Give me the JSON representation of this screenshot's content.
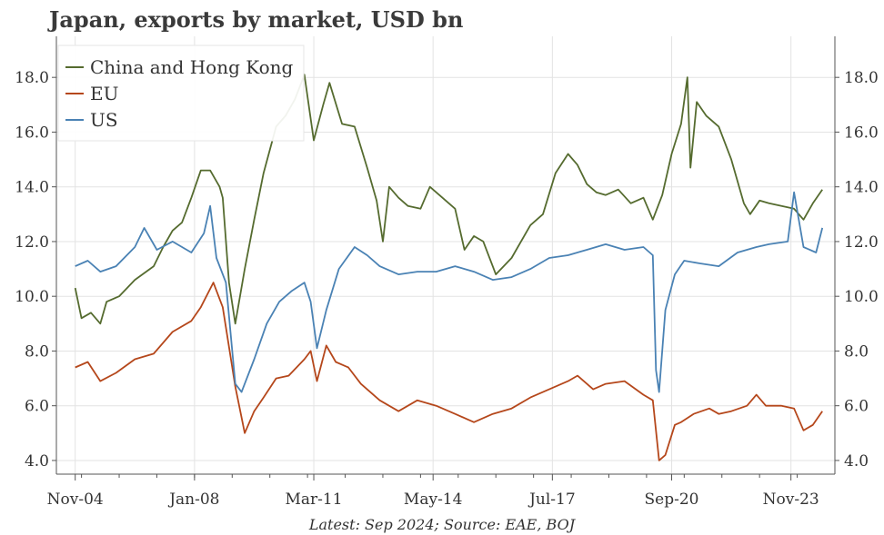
{
  "chart_data": {
    "type": "line",
    "title": "Japan, exports by market, USD bn",
    "source": "Latest: Sep 2024; Source: EAE, BOJ",
    "x_tick_labels": [
      "Nov-04",
      "Jan-08",
      "Mar-11",
      "May-14",
      "Jul-17",
      "Sep-20",
      "Nov-23"
    ],
    "x_tick_dates": [
      "2004-11",
      "2008-01",
      "2011-03",
      "2014-05",
      "2017-07",
      "2020-09",
      "2023-11"
    ],
    "x_range": [
      "2004-05",
      "2025-01"
    ],
    "y_range": [
      3.5,
      19.5
    ],
    "y_ticks": [
      "4.0",
      "6.0",
      "8.0",
      "10.0",
      "12.0",
      "14.0",
      "16.0",
      "18.0"
    ],
    "grid": true,
    "legend_position": "top-left",
    "colors": {
      "china_hk": "#556b2f",
      "eu": "#b5471b",
      "us": "#4a82b4"
    },
    "series": [
      {
        "name": "China and Hong Kong",
        "color_key": "china_hk",
        "points": [
          [
            "2004-11",
            10.3
          ],
          [
            "2005-01",
            9.2
          ],
          [
            "2005-04",
            9.4
          ],
          [
            "2005-07",
            9.0
          ],
          [
            "2005-09",
            9.8
          ],
          [
            "2006-01",
            10.0
          ],
          [
            "2006-06",
            10.6
          ],
          [
            "2006-12",
            11.1
          ],
          [
            "2007-03",
            11.8
          ],
          [
            "2007-06",
            12.4
          ],
          [
            "2007-09",
            12.7
          ],
          [
            "2007-12",
            13.6
          ],
          [
            "2008-03",
            14.6
          ],
          [
            "2008-06",
            14.6
          ],
          [
            "2008-09",
            14.0
          ],
          [
            "2008-10",
            13.6
          ],
          [
            "2008-12",
            10.5
          ],
          [
            "2009-02",
            9.0
          ],
          [
            "2009-05",
            11.0
          ],
          [
            "2009-08",
            12.8
          ],
          [
            "2009-11",
            14.5
          ],
          [
            "2010-03",
            16.2
          ],
          [
            "2010-06",
            16.6
          ],
          [
            "2010-09",
            17.2
          ],
          [
            "2010-12",
            18.1
          ],
          [
            "2011-03",
            15.7
          ],
          [
            "2011-06",
            17.0
          ],
          [
            "2011-08",
            17.8
          ],
          [
            "2011-12",
            16.3
          ],
          [
            "2012-04",
            16.2
          ],
          [
            "2012-08",
            14.7
          ],
          [
            "2012-11",
            13.5
          ],
          [
            "2013-01",
            12.0
          ],
          [
            "2013-03",
            14.0
          ],
          [
            "2013-06",
            13.6
          ],
          [
            "2013-09",
            13.3
          ],
          [
            "2014-01",
            13.2
          ],
          [
            "2014-04",
            14.0
          ],
          [
            "2014-08",
            13.6
          ],
          [
            "2014-12",
            13.2
          ],
          [
            "2015-03",
            11.7
          ],
          [
            "2015-06",
            12.2
          ],
          [
            "2015-09",
            12.0
          ],
          [
            "2016-01",
            10.8
          ],
          [
            "2016-06",
            11.4
          ],
          [
            "2016-12",
            12.6
          ],
          [
            "2017-04",
            13.0
          ],
          [
            "2017-08",
            14.5
          ],
          [
            "2017-12",
            15.2
          ],
          [
            "2018-03",
            14.8
          ],
          [
            "2018-06",
            14.1
          ],
          [
            "2018-09",
            13.8
          ],
          [
            "2018-12",
            13.7
          ],
          [
            "2019-04",
            13.9
          ],
          [
            "2019-08",
            13.4
          ],
          [
            "2019-12",
            13.6
          ],
          [
            "2020-03",
            12.8
          ],
          [
            "2020-06",
            13.7
          ],
          [
            "2020-09",
            15.2
          ],
          [
            "2020-12",
            16.3
          ],
          [
            "2021-02",
            18.0
          ],
          [
            "2021-03",
            14.7
          ],
          [
            "2021-05",
            17.1
          ],
          [
            "2021-08",
            16.6
          ],
          [
            "2021-12",
            16.2
          ],
          [
            "2022-04",
            15.0
          ],
          [
            "2022-08",
            13.4
          ],
          [
            "2022-10",
            13.0
          ],
          [
            "2023-01",
            13.5
          ],
          [
            "2023-04",
            13.4
          ],
          [
            "2023-08",
            13.3
          ],
          [
            "2023-12",
            13.2
          ],
          [
            "2024-03",
            12.8
          ],
          [
            "2024-06",
            13.4
          ],
          [
            "2024-09",
            13.9
          ]
        ]
      },
      {
        "name": "EU",
        "color_key": "eu",
        "points": [
          [
            "2004-11",
            7.4
          ],
          [
            "2005-03",
            7.6
          ],
          [
            "2005-07",
            6.9
          ],
          [
            "2005-12",
            7.2
          ],
          [
            "2006-06",
            7.7
          ],
          [
            "2006-12",
            7.9
          ],
          [
            "2007-06",
            8.7
          ],
          [
            "2007-12",
            9.1
          ],
          [
            "2008-03",
            9.6
          ],
          [
            "2008-07",
            10.5
          ],
          [
            "2008-10",
            9.6
          ],
          [
            "2009-02",
            6.7
          ],
          [
            "2009-05",
            5.0
          ],
          [
            "2009-08",
            5.8
          ],
          [
            "2009-11",
            6.3
          ],
          [
            "2010-03",
            7.0
          ],
          [
            "2010-07",
            7.1
          ],
          [
            "2010-12",
            7.7
          ],
          [
            "2011-02",
            8.0
          ],
          [
            "2011-04",
            6.9
          ],
          [
            "2011-07",
            8.2
          ],
          [
            "2011-10",
            7.6
          ],
          [
            "2012-02",
            7.4
          ],
          [
            "2012-06",
            6.8
          ],
          [
            "2012-12",
            6.2
          ],
          [
            "2013-06",
            5.8
          ],
          [
            "2013-12",
            6.2
          ],
          [
            "2014-06",
            6.0
          ],
          [
            "2014-12",
            5.7
          ],
          [
            "2015-06",
            5.4
          ],
          [
            "2015-12",
            5.7
          ],
          [
            "2016-06",
            5.9
          ],
          [
            "2016-12",
            6.3
          ],
          [
            "2017-06",
            6.6
          ],
          [
            "2017-12",
            6.9
          ],
          [
            "2018-03",
            7.1
          ],
          [
            "2018-08",
            6.6
          ],
          [
            "2018-12",
            6.8
          ],
          [
            "2019-06",
            6.9
          ],
          [
            "2019-12",
            6.4
          ],
          [
            "2020-03",
            6.2
          ],
          [
            "2020-05",
            4.0
          ],
          [
            "2020-07",
            4.2
          ],
          [
            "2020-10",
            5.3
          ],
          [
            "2020-12",
            5.4
          ],
          [
            "2021-04",
            5.7
          ],
          [
            "2021-09",
            5.9
          ],
          [
            "2021-12",
            5.7
          ],
          [
            "2022-04",
            5.8
          ],
          [
            "2022-09",
            6.0
          ],
          [
            "2022-12",
            6.4
          ],
          [
            "2023-03",
            6.0
          ],
          [
            "2023-08",
            6.0
          ],
          [
            "2023-12",
            5.9
          ],
          [
            "2024-03",
            5.1
          ],
          [
            "2024-06",
            5.3
          ],
          [
            "2024-09",
            5.8
          ]
        ]
      },
      {
        "name": "US",
        "color_key": "us",
        "points": [
          [
            "2004-11",
            11.1
          ],
          [
            "2005-03",
            11.3
          ],
          [
            "2005-07",
            10.9
          ],
          [
            "2005-12",
            11.1
          ],
          [
            "2006-06",
            11.8
          ],
          [
            "2006-09",
            12.5
          ],
          [
            "2007-01",
            11.7
          ],
          [
            "2007-06",
            12.0
          ],
          [
            "2007-12",
            11.6
          ],
          [
            "2008-04",
            12.3
          ],
          [
            "2008-06",
            13.3
          ],
          [
            "2008-08",
            11.4
          ],
          [
            "2008-11",
            10.5
          ],
          [
            "2009-02",
            6.8
          ],
          [
            "2009-04",
            6.5
          ],
          [
            "2009-08",
            7.7
          ],
          [
            "2009-12",
            9.0
          ],
          [
            "2010-04",
            9.8
          ],
          [
            "2010-08",
            10.2
          ],
          [
            "2010-12",
            10.5
          ],
          [
            "2011-02",
            9.8
          ],
          [
            "2011-04",
            8.1
          ],
          [
            "2011-07",
            9.5
          ],
          [
            "2011-11",
            11.0
          ],
          [
            "2012-04",
            11.8
          ],
          [
            "2012-08",
            11.5
          ],
          [
            "2012-12",
            11.1
          ],
          [
            "2013-06",
            10.8
          ],
          [
            "2013-12",
            10.9
          ],
          [
            "2014-06",
            10.9
          ],
          [
            "2014-12",
            11.1
          ],
          [
            "2015-06",
            10.9
          ],
          [
            "2015-12",
            10.6
          ],
          [
            "2016-06",
            10.7
          ],
          [
            "2016-12",
            11.0
          ],
          [
            "2017-06",
            11.4
          ],
          [
            "2017-12",
            11.5
          ],
          [
            "2018-06",
            11.7
          ],
          [
            "2018-12",
            11.9
          ],
          [
            "2019-06",
            11.7
          ],
          [
            "2019-12",
            11.8
          ],
          [
            "2020-03",
            11.5
          ],
          [
            "2020-04",
            7.3
          ],
          [
            "2020-05",
            6.5
          ],
          [
            "2020-07",
            9.5
          ],
          [
            "2020-10",
            10.8
          ],
          [
            "2021-01",
            11.3
          ],
          [
            "2021-06",
            11.2
          ],
          [
            "2021-12",
            11.1
          ],
          [
            "2022-06",
            11.6
          ],
          [
            "2022-12",
            11.8
          ],
          [
            "2023-04",
            11.9
          ],
          [
            "2023-10",
            12.0
          ],
          [
            "2023-12",
            13.8
          ],
          [
            "2024-03",
            11.8
          ],
          [
            "2024-07",
            11.6
          ],
          [
            "2024-09",
            12.5
          ]
        ]
      }
    ]
  }
}
